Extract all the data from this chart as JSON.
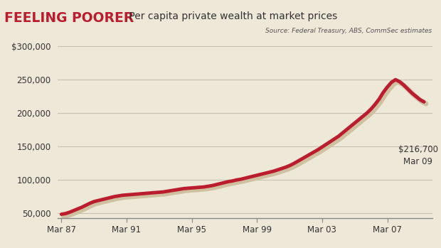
{
  "title_bold": "FEELING POORER",
  "title_normal": " Per capita private wealth at market prices",
  "source_text": "Source: Federal Treasury, ABS, CommSec estimates",
  "annotation_text": "$216,700\nMar 09",
  "background_color": "#ede8d8",
  "line_color": "#bb1c2e",
  "line_shadow_color": "#cfc0a0",
  "ylim": [
    42000,
    310000
  ],
  "xtick_labels": [
    "Mar 87",
    "Mar 91",
    "Mar 95",
    "Mar 99",
    "Mar 03",
    "Mar 07"
  ],
  "x_values": [
    0,
    1,
    2,
    3,
    4,
    5,
    6,
    7,
    8,
    9,
    10,
    11,
    12,
    13,
    14,
    15,
    16,
    17,
    18,
    19,
    20,
    21,
    22,
    23,
    24,
    25,
    26,
    27,
    28,
    29,
    30,
    31,
    32,
    33,
    34,
    35,
    36,
    37,
    38,
    39,
    40,
    41,
    42,
    43,
    44,
    45,
    46,
    47,
    48,
    49,
    50,
    51,
    52,
    53,
    54,
    55,
    56,
    57,
    58,
    59,
    60,
    61,
    62,
    63,
    64,
    65,
    66,
    67,
    68,
    69,
    70,
    71,
    72,
    73,
    74,
    75,
    76,
    77,
    78,
    79,
    80,
    81,
    82,
    83,
    84,
    85,
    86,
    87,
    88,
    89
  ],
  "y_values": [
    48000,
    49000,
    51000,
    53500,
    56000,
    58500,
    61500,
    64500,
    67000,
    68500,
    70000,
    71500,
    73000,
    74500,
    75500,
    76500,
    77000,
    77500,
    78000,
    78500,
    79000,
    79500,
    80000,
    80500,
    81000,
    81500,
    82500,
    83500,
    84500,
    85500,
    86500,
    87000,
    87500,
    88000,
    88500,
    89000,
    90000,
    91000,
    92500,
    94000,
    95500,
    97000,
    98000,
    99500,
    100500,
    102000,
    103500,
    105000,
    106500,
    108000,
    109500,
    111000,
    112500,
    114500,
    116500,
    118500,
    121000,
    124000,
    127500,
    131000,
    134500,
    138000,
    141500,
    145000,
    149000,
    153000,
    157000,
    161000,
    165000,
    170000,
    175000,
    180000,
    185000,
    190000,
    195000,
    200000,
    206000,
    213000,
    221000,
    231000,
    239000,
    246000,
    250000,
    247000,
    242000,
    236000,
    230000,
    225000,
    220000,
    216700
  ]
}
